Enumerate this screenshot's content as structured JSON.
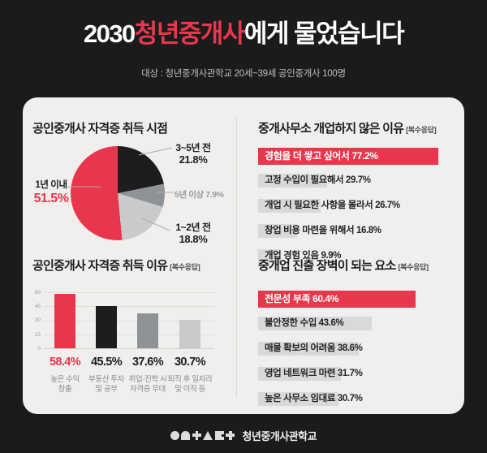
{
  "header": {
    "title_prefix": "2030",
    "title_accent": "청년중개사",
    "title_suffix": "에게 물었습니다",
    "subtitle": "대상 : 청년중개사관학교 20세~39세 공인중개사 100명"
  },
  "colors": {
    "page_bg": "#1b1b1b",
    "card_bg": "#f0efed",
    "accent_red": "#e8374d",
    "ink": "#1d1d1f",
    "slice_dark_gray": "#8f9396",
    "slice_light_gray": "#c9cacb",
    "row_bar_gray": "#dad9d7",
    "muted_text": "#8a8a8a"
  },
  "sections": {
    "acquire_time": {
      "title": "공인중개사 자격증 취득 시점",
      "slices": [
        {
          "label": "3~5년 전",
          "pct": "21.8%",
          "value": 21.8
        },
        {
          "label": "5년 이상",
          "pct": "7.9%",
          "value": 7.9
        },
        {
          "label": "1~2년 전",
          "pct": "18.8%",
          "value": 18.8
        },
        {
          "label": "1년 이내",
          "pct": "51.5%",
          "value": 51.5
        }
      ]
    },
    "not_open_reason": {
      "title": "중개사무소 개업하지 않은 이유",
      "note": "[복수응답]",
      "rows": [
        {
          "label": "경험을 더 쌓고 싶어서",
          "pct": "77.2%",
          "value": 77.2,
          "highlight": true
        },
        {
          "label": "고정 수입이 필요해서",
          "pct": "29.7%",
          "value": 29.7
        },
        {
          "label": "개업 시 필요한 사항을 몰라서",
          "pct": "26.7%",
          "value": 26.7
        },
        {
          "label": "창업 비용 마련을 위해서",
          "pct": "16.8%",
          "value": 16.8
        },
        {
          "label": "개업 경험 있음",
          "pct": "9.9%",
          "value": 9.9
        }
      ]
    },
    "acquire_reason": {
      "title": "공인중개사 자격증 취득 이유",
      "note": "[복수응답]",
      "yticks": [
        "60",
        "45",
        "30",
        "15",
        "0"
      ],
      "bars": [
        {
          "pct": "58.4%",
          "value": 58.4,
          "label": "높은 수익\n창출"
        },
        {
          "pct": "45.5%",
          "value": 45.5,
          "label": "부동산 투자\n및 공부"
        },
        {
          "pct": "37.6%",
          "value": 37.6,
          "label": "취업·진학 시\n자격증 우대"
        },
        {
          "pct": "30.7%",
          "value": 30.7,
          "label": "퇴직 후 일자리\n및 이직 등"
        }
      ]
    },
    "barrier": {
      "title": "중개업 진출 장벽이 되는 요소",
      "note": "[복수응답]",
      "rows": [
        {
          "label": "전문성 부족",
          "pct": "60.4%",
          "value": 60.4,
          "highlight": true
        },
        {
          "label": "불안정한 수입",
          "pct": "43.6%",
          "value": 43.6
        },
        {
          "label": "매물 확보의 어려움",
          "pct": "38.6%",
          "value": 38.6
        },
        {
          "label": "영업 네트워크 마련",
          "pct": "31.7%",
          "value": 31.7
        },
        {
          "label": "높은 사무소 임대료",
          "pct": "30.7%",
          "value": 30.7
        }
      ]
    }
  },
  "footer": {
    "brand": "청년중개사관학교",
    "logo_name": "ONTACT"
  },
  "chart_data": [
    {
      "type": "pie",
      "title": "공인중개사 자격증 취득 시점",
      "labels": [
        "3~5년 전",
        "5년 이상",
        "1~2년 전",
        "1년 이내"
      ],
      "values": [
        21.8,
        7.9,
        18.8,
        51.5
      ],
      "colors": [
        "#1d1d1f",
        "#8f9396",
        "#c9cacb",
        "#e8374d"
      ],
      "start_angle_deg": 0,
      "direction": "clockwise",
      "legend_position": "callout-labels"
    },
    {
      "type": "bar",
      "orientation": "horizontal",
      "title": "중개사무소 개업하지 않은 이유 [복수응답]",
      "categories": [
        "경험을 더 쌓고 싶어서",
        "고정 수입이 필요해서",
        "개업 시 필요한 사항을 몰라서",
        "창업 비용 마련을 위해서",
        "개업 경험 있음"
      ],
      "values": [
        77.2,
        29.7,
        26.7,
        16.8,
        9.9
      ],
      "highlight_index": 0,
      "highlight_color": "#e8374d",
      "bar_color": "#dad9d7"
    },
    {
      "type": "bar",
      "orientation": "vertical",
      "title": "공인중개사 자격증 취득 이유 [복수응답]",
      "categories": [
        "높은 수익 창출",
        "부동산 투자 및 공부",
        "취업·진학 시 자격증 우대",
        "퇴직 후 일자리 및 이직 등"
      ],
      "values": [
        58.4,
        45.5,
        37.6,
        30.7
      ],
      "colors": [
        "#e8374d",
        "#1d1d1f",
        "#8f9396",
        "#c9cacb"
      ],
      "ylim": [
        0,
        60
      ],
      "yticks": [
        0,
        15,
        30,
        45,
        60
      ],
      "grid": true
    },
    {
      "type": "bar",
      "orientation": "horizontal",
      "title": "중개업 진출 장벽이 되는 요소 [복수응답]",
      "categories": [
        "전문성 부족",
        "불안정한 수입",
        "매물 확보의 어려움",
        "영업 네트워크 마련",
        "높은 사무소 임대료"
      ],
      "values": [
        60.4,
        43.6,
        38.6,
        31.7,
        30.7
      ],
      "highlight_index": 0,
      "highlight_color": "#e8374d",
      "bar_color": "#dad9d7"
    }
  ]
}
